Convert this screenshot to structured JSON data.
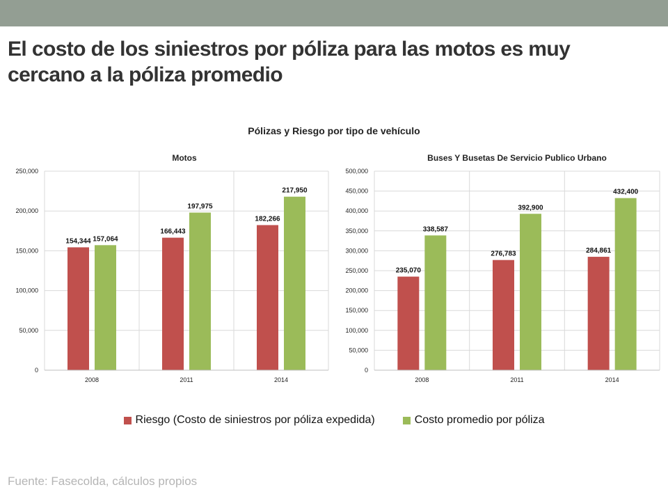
{
  "slide": {
    "title": "El costo de los siniestros por póliza para las motos es muy cercano a la póliza promedio",
    "source": "Fuente: Fasecolda, cálculos propios"
  },
  "figure_title": "Pólizas y Riesgo por tipo de vehículo",
  "colors": {
    "riesgo": "#c0504d",
    "costo": "#9bbb59",
    "band": "#939e93"
  },
  "legend": [
    {
      "label": "Riesgo (Costo de siniestros por póliza expedida)",
      "color": "#c0504d"
    },
    {
      "label": "Costo promedio por póliza",
      "color": "#9bbb59"
    }
  ],
  "chart_data": [
    {
      "type": "bar",
      "title": "Motos",
      "categories": [
        "2008",
        "2011",
        "2014"
      ],
      "series": [
        {
          "name": "Riesgo (Costo de siniestros por póliza expedida)",
          "values": [
            154344,
            166443,
            182266
          ]
        },
        {
          "name": "Costo promedio por póliza",
          "values": [
            157064,
            197975,
            217950
          ]
        }
      ],
      "data_labels": [
        [
          "154,344",
          "166,443",
          "182,266"
        ],
        [
          "157,064",
          "197,975",
          "217,950"
        ]
      ],
      "ylim": [
        0,
        250000
      ],
      "yticks": [
        0,
        50000,
        100000,
        150000,
        200000,
        250000
      ],
      "ytick_labels": [
        "0",
        "50,000",
        "100,000",
        "150,000",
        "200,000",
        "250,000"
      ],
      "grid": true
    },
    {
      "type": "bar",
      "title": "Buses Y Busetas De Servicio Publico Urbano",
      "categories": [
        "2008",
        "2011",
        "2014"
      ],
      "series": [
        {
          "name": "Riesgo (Costo de siniestros por póliza expedida)",
          "values": [
            235070,
            276783,
            284861
          ]
        },
        {
          "name": "Costo promedio por póliza",
          "values": [
            338587,
            392900,
            432400
          ]
        }
      ],
      "data_labels": [
        [
          "235,070",
          "276,783",
          "284,861"
        ],
        [
          "338,587",
          "392,900",
          "432,400"
        ]
      ],
      "ylim": [
        0,
        500000
      ],
      "yticks": [
        0,
        50000,
        100000,
        150000,
        200000,
        250000,
        300000,
        350000,
        400000,
        450000,
        500000
      ],
      "ytick_labels": [
        "0",
        "50,000",
        "100,000",
        "150,000",
        "200,000",
        "250,000",
        "300,000",
        "350,000",
        "400,000",
        "450,000",
        "500,000"
      ],
      "grid": true
    }
  ]
}
